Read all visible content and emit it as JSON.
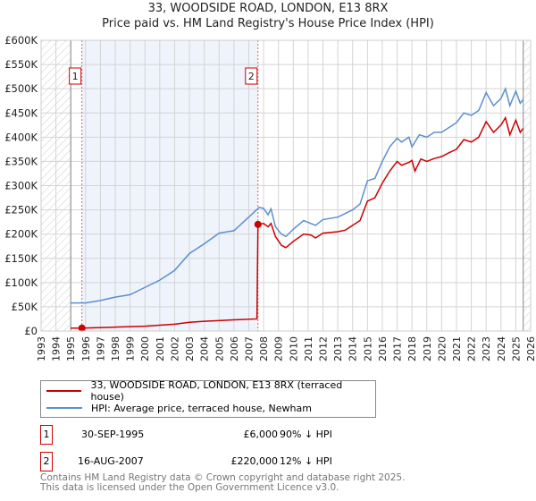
{
  "chart_data": {
    "type": "line",
    "title": "33, WOODSIDE ROAD, LONDON, E13 8RX",
    "subtitle": "Price paid vs. HM Land Registry's House Price Index (HPI)",
    "xlim": [
      1993,
      2026
    ],
    "ylim": [
      0,
      600000
    ],
    "x_ticks": [
      "1993",
      "1994",
      "1995",
      "1996",
      "1997",
      "1998",
      "1999",
      "2000",
      "2001",
      "2002",
      "2003",
      "2004",
      "2005",
      "2006",
      "2007",
      "2008",
      "2009",
      "2010",
      "2011",
      "2012",
      "2013",
      "2014",
      "2015",
      "2016",
      "2017",
      "2018",
      "2019",
      "2020",
      "2021",
      "2022",
      "2023",
      "2024",
      "2025",
      "2026"
    ],
    "y_ticks": [
      {
        "v": 0,
        "l": "£0"
      },
      {
        "v": 50000,
        "l": "£50K"
      },
      {
        "v": 100000,
        "l": "£100K"
      },
      {
        "v": 150000,
        "l": "£150K"
      },
      {
        "v": 200000,
        "l": "£200K"
      },
      {
        "v": 250000,
        "l": "£250K"
      },
      {
        "v": 300000,
        "l": "£300K"
      },
      {
        "v": 350000,
        "l": "£350K"
      },
      {
        "v": 400000,
        "l": "£400K"
      },
      {
        "v": 450000,
        "l": "£450K"
      },
      {
        "v": 500000,
        "l": "£500K"
      },
      {
        "v": 550000,
        "l": "£550K"
      },
      {
        "v": 600000,
        "l": "£600K"
      }
    ],
    "grid": true,
    "data_start": 1995.0,
    "data_end": 2025.5,
    "series": [
      {
        "name": "33, WOODSIDE ROAD, LONDON, E13 8RX (terraced house)",
        "color": "#cc0000",
        "points": [
          [
            1995,
            6000
          ],
          [
            1995.75,
            6000
          ],
          [
            1998,
            8000
          ],
          [
            2000,
            10000
          ],
          [
            2002,
            14000
          ],
          [
            2003,
            18000
          ],
          [
            2004,
            20000
          ],
          [
            2006,
            23000
          ],
          [
            2007.55,
            25000
          ],
          [
            2007.62,
            220000
          ],
          [
            2008,
            222000
          ],
          [
            2008.3,
            215000
          ],
          [
            2008.5,
            222000
          ],
          [
            2008.8,
            195000
          ],
          [
            2009.2,
            177000
          ],
          [
            2009.5,
            172000
          ],
          [
            2010,
            185000
          ],
          [
            2010.7,
            200000
          ],
          [
            2011.2,
            198000
          ],
          [
            2011.5,
            192000
          ],
          [
            2012,
            202000
          ],
          [
            2013,
            205000
          ],
          [
            2013.5,
            208000
          ],
          [
            2014,
            218000
          ],
          [
            2014.5,
            228000
          ],
          [
            2015,
            268000
          ],
          [
            2015.5,
            275000
          ],
          [
            2016,
            305000
          ],
          [
            2016.5,
            330000
          ],
          [
            2017,
            350000
          ],
          [
            2017.3,
            342000
          ],
          [
            2017.8,
            348000
          ],
          [
            2018,
            352000
          ],
          [
            2018.2,
            330000
          ],
          [
            2018.6,
            355000
          ],
          [
            2019,
            350000
          ],
          [
            2019.5,
            356000
          ],
          [
            2020,
            360000
          ],
          [
            2020.5,
            368000
          ],
          [
            2021,
            375000
          ],
          [
            2021.5,
            395000
          ],
          [
            2022,
            390000
          ],
          [
            2022.5,
            400000
          ],
          [
            2023,
            432000
          ],
          [
            2023.5,
            410000
          ],
          [
            2024,
            425000
          ],
          [
            2024.3,
            440000
          ],
          [
            2024.6,
            405000
          ],
          [
            2025,
            435000
          ],
          [
            2025.3,
            410000
          ],
          [
            2025.5,
            418000
          ]
        ]
      },
      {
        "name": "HPI: Average price, terraced house, Newham",
        "color": "#5b8fd0",
        "points": [
          [
            1995,
            58000
          ],
          [
            1996,
            58000
          ],
          [
            1997,
            63000
          ],
          [
            1998,
            70000
          ],
          [
            1999,
            75000
          ],
          [
            2000,
            90000
          ],
          [
            2001,
            105000
          ],
          [
            2002,
            125000
          ],
          [
            2003,
            160000
          ],
          [
            2004,
            180000
          ],
          [
            2005,
            202000
          ],
          [
            2006,
            207000
          ],
          [
            2007,
            235000
          ],
          [
            2007.7,
            255000
          ],
          [
            2008,
            253000
          ],
          [
            2008.3,
            240000
          ],
          [
            2008.5,
            252000
          ],
          [
            2008.8,
            215000
          ],
          [
            2009.2,
            200000
          ],
          [
            2009.5,
            195000
          ],
          [
            2010,
            210000
          ],
          [
            2010.7,
            228000
          ],
          [
            2011.5,
            218000
          ],
          [
            2012,
            230000
          ],
          [
            2013,
            235000
          ],
          [
            2014,
            250000
          ],
          [
            2014.5,
            262000
          ],
          [
            2015,
            310000
          ],
          [
            2015.5,
            315000
          ],
          [
            2016,
            350000
          ],
          [
            2016.5,
            380000
          ],
          [
            2017,
            398000
          ],
          [
            2017.3,
            390000
          ],
          [
            2017.8,
            400000
          ],
          [
            2018,
            380000
          ],
          [
            2018.5,
            405000
          ],
          [
            2019,
            400000
          ],
          [
            2019.5,
            410000
          ],
          [
            2020,
            410000
          ],
          [
            2020.5,
            420000
          ],
          [
            2021,
            430000
          ],
          [
            2021.5,
            450000
          ],
          [
            2022,
            445000
          ],
          [
            2022.5,
            455000
          ],
          [
            2023,
            492000
          ],
          [
            2023.5,
            465000
          ],
          [
            2024,
            480000
          ],
          [
            2024.3,
            500000
          ],
          [
            2024.6,
            465000
          ],
          [
            2025,
            495000
          ],
          [
            2025.3,
            470000
          ],
          [
            2025.5,
            478000
          ]
        ]
      }
    ],
    "sales": [
      {
        "label": "1",
        "x": 1995.75,
        "y": 6000
      },
      {
        "label": "2",
        "x": 2007.62,
        "y": 220000
      }
    ]
  },
  "table": [
    {
      "num": "1",
      "date": "30-SEP-1995",
      "price": "£6,000",
      "hpi": "90% ↓ HPI"
    },
    {
      "num": "2",
      "date": "16-AUG-2007",
      "price": "£220,000",
      "hpi": "12% ↓ HPI"
    }
  ],
  "footer": [
    "Contains HM Land Registry data © Crown copyright and database right 2025.",
    "This data is licensed under the Open Government Licence v3.0."
  ]
}
